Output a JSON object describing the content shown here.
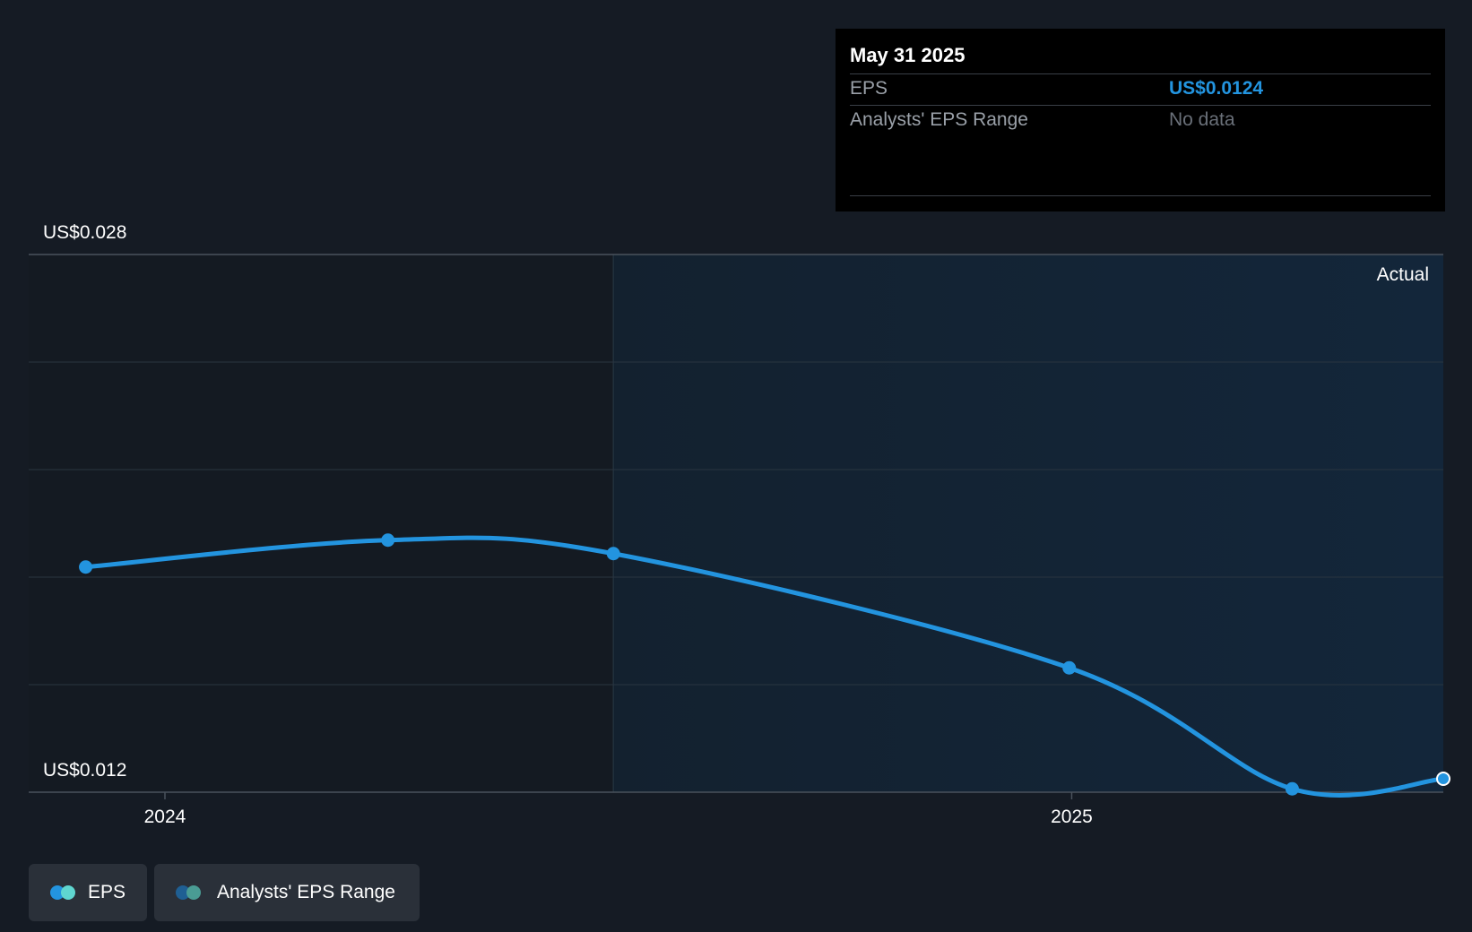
{
  "tooltip": {
    "date": "May 31 2025",
    "rows": [
      {
        "label": "EPS",
        "value": "US$0.0124"
      },
      {
        "label": "Analysts' EPS Range",
        "value": "No data"
      }
    ]
  },
  "region_label": "Actual",
  "legend": {
    "items": [
      {
        "label": "EPS",
        "colors": [
          "#2394df",
          "#5fd6d0"
        ]
      },
      {
        "label": "Analysts' EPS Range",
        "colors": [
          "#1f5f93",
          "#4a9c94"
        ]
      }
    ]
  },
  "colors": {
    "background": "#151b24",
    "actual_region": "#13212f",
    "line": "#2394df"
  },
  "chart_data": {
    "type": "line",
    "title": "",
    "xlabel": "",
    "ylabel": "",
    "ylim": [
      0.012,
      0.028
    ],
    "y_ticks": [
      {
        "value": 0.028,
        "label": "US$0.028"
      },
      {
        "value": 0.012,
        "label": "US$0.012"
      }
    ],
    "x_ticks": [
      {
        "value": "2024-01-01",
        "label": "2024"
      },
      {
        "value": "2025-01-01",
        "label": "2025"
      }
    ],
    "x_range": [
      "2023-11-07",
      "2025-05-31"
    ],
    "actual_start": "2024-06-30",
    "grid": true,
    "legend_position": "bottom-left",
    "series": [
      {
        "name": "EPS",
        "points": [
          {
            "x": "2023-11-30",
            "y": 0.0187
          },
          {
            "x": "2024-03-31",
            "y": 0.0195
          },
          {
            "x": "2024-06-30",
            "y": 0.0191
          },
          {
            "x": "2024-12-31",
            "y": 0.0157
          },
          {
            "x": "2025-03-31",
            "y": 0.0121
          },
          {
            "x": "2025-05-31",
            "y": 0.0124
          }
        ]
      }
    ]
  }
}
